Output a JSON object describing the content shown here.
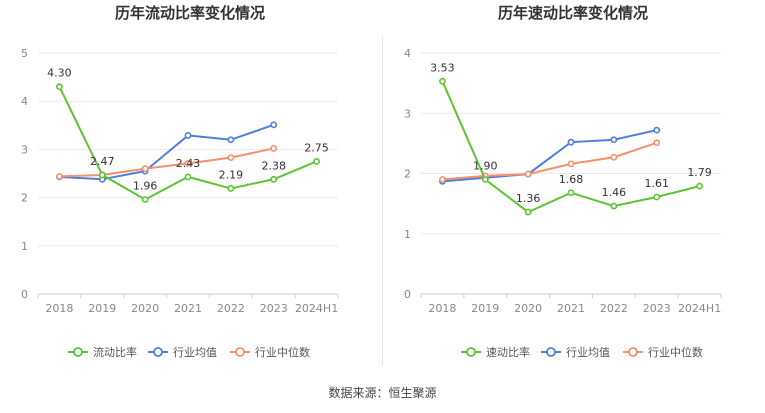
{
  "colors": {
    "company": "#5cc531",
    "industry_avg": "#4f7fdb",
    "industry_median": "#f4906b",
    "grid": "#e9e9e9",
    "axis_text": "#888888"
  },
  "chart_data": [
    {
      "type": "line",
      "title": "历年流动比率变化情况",
      "categories": [
        "2018",
        "2019",
        "2020",
        "2021",
        "2022",
        "2023",
        "2024H1"
      ],
      "ylim": [
        0,
        5
      ],
      "yticks": [
        "0",
        "1",
        "2",
        "3",
        "4",
        "5"
      ],
      "legend_position": "bottom",
      "series": [
        {
          "name": "流动比率",
          "key": "company",
          "values": [
            4.3,
            2.47,
            1.96,
            2.43,
            2.19,
            2.38,
            2.75
          ],
          "labels": [
            "4.30",
            "2.47",
            "1.96",
            "2.43",
            "2.19",
            "2.38",
            "2.75"
          ]
        },
        {
          "name": "行业均值",
          "key": "industry_avg",
          "values": [
            2.43,
            2.38,
            2.55,
            3.29,
            3.2,
            3.51,
            null
          ]
        },
        {
          "name": "行业中位数",
          "key": "industry_median",
          "values": [
            2.44,
            2.47,
            2.6,
            2.71,
            2.83,
            3.02,
            null
          ]
        }
      ]
    },
    {
      "type": "line",
      "title": "历年速动比率变化情况",
      "categories": [
        "2018",
        "2019",
        "2020",
        "2021",
        "2022",
        "2023",
        "2024H1"
      ],
      "ylim": [
        0,
        4
      ],
      "yticks": [
        "0",
        "1",
        "2",
        "3",
        "4"
      ],
      "legend_position": "bottom",
      "series": [
        {
          "name": "速动比率",
          "key": "company",
          "values": [
            3.53,
            1.9,
            1.36,
            1.68,
            1.46,
            1.61,
            1.79
          ],
          "labels": [
            "3.53",
            "1.90",
            "1.36",
            "1.68",
            "1.46",
            "1.61",
            "1.79"
          ]
        },
        {
          "name": "行业均值",
          "key": "industry_avg",
          "values": [
            1.87,
            1.93,
            1.99,
            2.52,
            2.56,
            2.72,
            null
          ]
        },
        {
          "name": "行业中位数",
          "key": "industry_median",
          "values": [
            1.9,
            1.96,
            1.99,
            2.16,
            2.27,
            2.51,
            null
          ]
        }
      ]
    }
  ],
  "footer": {
    "source": "数据来源：恒生聚源"
  }
}
